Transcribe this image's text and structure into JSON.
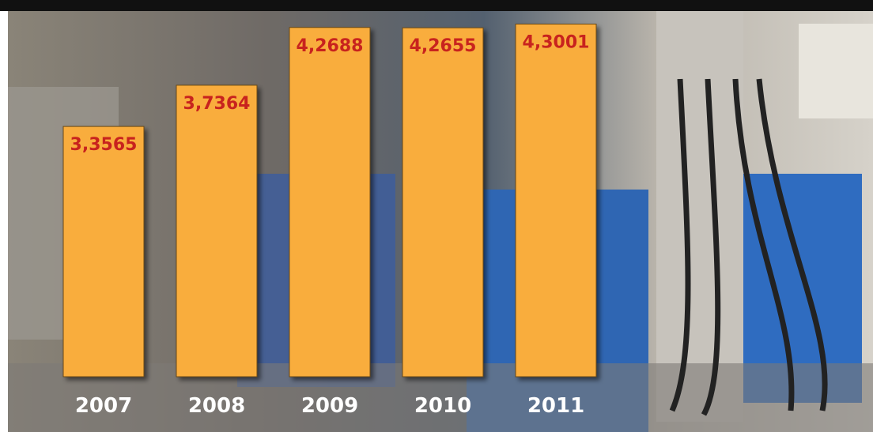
{
  "chart_data": {
    "type": "bar",
    "categories": [
      "2007",
      "2008",
      "2009",
      "2010",
      "2011"
    ],
    "values": [
      3.3565,
      3.7364,
      4.2688,
      4.2655,
      4.3001
    ],
    "value_labels": [
      "3,3565",
      "3,7364",
      "4,2688",
      "4,2655",
      "4,3001"
    ],
    "color": "#f9ad3c",
    "ylim": [
      1.05,
      4.42
    ]
  }
}
